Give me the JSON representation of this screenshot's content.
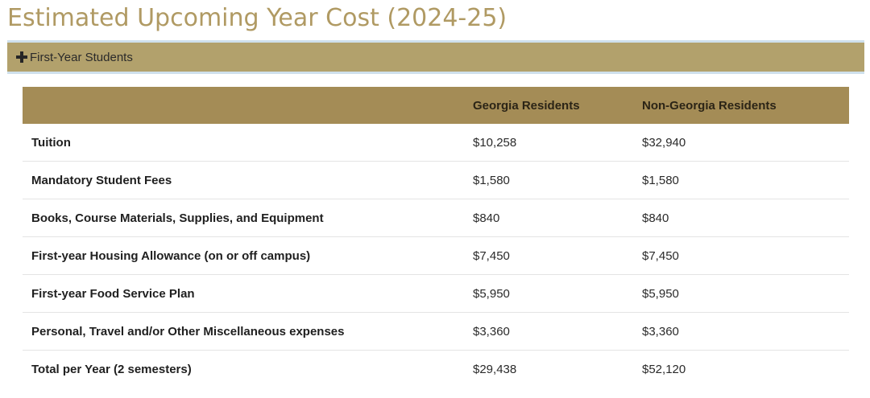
{
  "page": {
    "title": "Estimated Upcoming Year Cost (2024-25)"
  },
  "accordion": {
    "label": "First-Year Students",
    "icon": "plus-icon"
  },
  "table": {
    "headers": [
      "",
      "Georgia Residents",
      "Non-Georgia Residents"
    ],
    "rows": [
      {
        "item": "Tuition",
        "ga": "$10,258",
        "nonga": "$32,940"
      },
      {
        "item": "Mandatory Student Fees",
        "ga": "$1,580",
        "nonga": "$1,580"
      },
      {
        "item": "Books, Course Materials, Supplies, and Equipment",
        "ga": "$840",
        "nonga": "$840"
      },
      {
        "item": "First-year Housing Allowance (on or off campus)",
        "ga": "$7,450",
        "nonga": "$7,450"
      },
      {
        "item": "First-year Food Service Plan",
        "ga": "$5,950",
        "nonga": "$5,950"
      },
      {
        "item": "Personal, Travel and/or Other Miscellaneous expenses",
        "ga": "$3,360",
        "nonga": "$3,360"
      },
      {
        "item": "Total per Year (2 semesters)",
        "ga": "$29,438",
        "nonga": "$52,120"
      }
    ]
  },
  "colors": {
    "title": "#b09a63",
    "accordion_bg": "#b2a16c",
    "accordion_border": "#cfe0ec",
    "table_header_bg": "#a48c56"
  }
}
